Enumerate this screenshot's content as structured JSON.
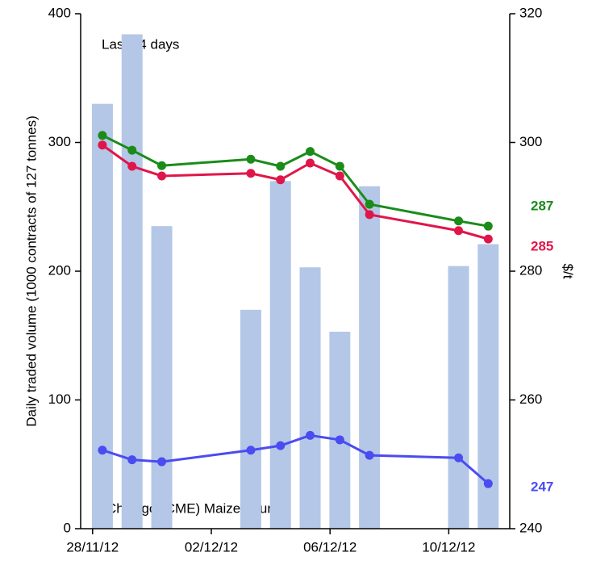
{
  "chart_data": {
    "type": "bar-line",
    "annotations": [
      "Last 14 days",
      "Chicago (CME)  Maize futures"
    ],
    "ylabel": "Daily  traded volume (1000 contracts of 127 tonnes)",
    "y2label": "$/t",
    "x": [
      "2012-11-28",
      "2012-11-29",
      "2012-11-30",
      "2012-12-03",
      "2012-12-04",
      "2012-12-05",
      "2012-12-06",
      "2012-12-07",
      "2012-12-10",
      "2012-12-11"
    ],
    "xlim": [
      "2012-11-27",
      "2012-12-12"
    ],
    "xticks": [
      {
        "value": "2012-11-28",
        "label": "28/11/12"
      },
      {
        "value": "2012-12-02",
        "label": "02/12/12"
      },
      {
        "value": "2012-12-06",
        "label": "06/12/12"
      },
      {
        "value": "2012-12-10",
        "label": "10/12/12"
      }
    ],
    "ylim": [
      0,
      400
    ],
    "yticks": [
      0,
      100,
      200,
      300,
      400
    ],
    "y2lim": [
      240,
      320
    ],
    "y2ticks": [
      240,
      260,
      280,
      300,
      320
    ],
    "series": [
      {
        "type": "bar",
        "color": "#b4c7e7",
        "values": [
          330,
          384,
          235,
          170,
          270,
          203,
          153,
          266,
          204,
          221
        ]
      },
      {
        "type": "line",
        "axis": "y2",
        "color": "#1a8c1a",
        "values": [
          301.1,
          298.8,
          296.4,
          297.4,
          296.3,
          298.6,
          296.3,
          290.4,
          287.8,
          287
        ]
      },
      {
        "type": "line",
        "axis": "y2",
        "color": "#e0164a",
        "values": [
          299.6,
          296.3,
          294.8,
          295.2,
          294.2,
          296.8,
          294.8,
          288.8,
          286.3,
          285
        ]
      },
      {
        "type": "line",
        "axis": "y2",
        "color": "#4b4bf2",
        "values": [
          252.2,
          250.7,
          250.4,
          252.2,
          252.9,
          254.5,
          253.8,
          251.4,
          251.0,
          247
        ]
      }
    ]
  }
}
